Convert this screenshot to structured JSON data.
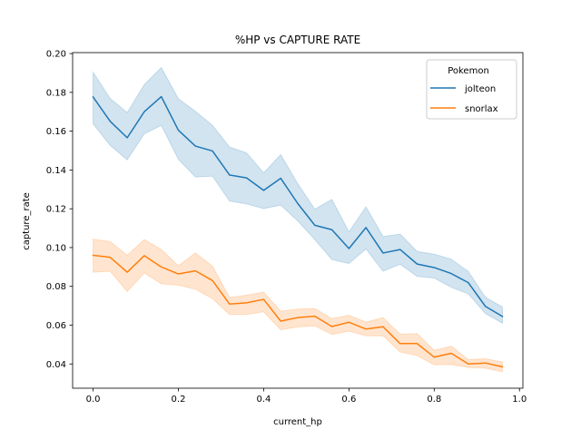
{
  "chart_data": {
    "type": "line",
    "title": "%HP vs CAPTURE RATE",
    "xlabel": "current_hp",
    "ylabel": "capture_rate",
    "xlim": [
      -0.048,
      1.008
    ],
    "ylim": [
      0.0275,
      0.2005
    ],
    "x_ticks": [
      0.0,
      0.2,
      0.4,
      0.6,
      0.8,
      1.0
    ],
    "x_tick_labels": [
      "0.0",
      "0.2",
      "0.4",
      "0.6",
      "0.8",
      "1.0"
    ],
    "y_ticks": [
      0.04,
      0.06,
      0.08,
      0.1,
      0.12,
      0.14,
      0.16,
      0.18,
      0.2
    ],
    "y_tick_labels": [
      "0.04",
      "0.06",
      "0.08",
      "0.10",
      "0.12",
      "0.14",
      "0.16",
      "0.18",
      "0.20"
    ],
    "grid": false,
    "legend": {
      "title": "Pokemon",
      "position": "top-right"
    },
    "x": [
      0.0,
      0.04,
      0.08,
      0.12,
      0.16,
      0.2,
      0.24,
      0.28,
      0.32,
      0.36,
      0.4,
      0.44,
      0.48,
      0.52,
      0.56,
      0.6,
      0.64,
      0.68,
      0.72,
      0.76,
      0.8,
      0.84,
      0.88,
      0.92,
      0.96
    ],
    "series": [
      {
        "name": "jolteon",
        "color": "#1f77b4",
        "values": [
          0.1776,
          0.1651,
          0.1566,
          0.17,
          0.1778,
          0.1605,
          0.1523,
          0.1498,
          0.1374,
          0.1359,
          0.1295,
          0.1357,
          0.1227,
          0.1115,
          0.1092,
          0.0995,
          0.1103,
          0.0972,
          0.099,
          0.0915,
          0.0897,
          0.0866,
          0.0819,
          0.0697,
          0.0645
        ],
        "ci_lower": [
          0.1638,
          0.1527,
          0.1452,
          0.1586,
          0.163,
          0.1455,
          0.1364,
          0.1368,
          0.124,
          0.1225,
          0.1201,
          0.1219,
          0.1137,
          0.1041,
          0.0938,
          0.0918,
          0.0993,
          0.0878,
          0.0914,
          0.0851,
          0.0843,
          0.0795,
          0.0761,
          0.066,
          0.061
        ],
        "ci_upper": [
          0.1904,
          0.1769,
          0.1696,
          0.184,
          0.1928,
          0.1767,
          0.1702,
          0.163,
          0.1518,
          0.1488,
          0.1385,
          0.1479,
          0.1329,
          0.1198,
          0.1248,
          0.1081,
          0.121,
          0.1057,
          0.1069,
          0.098,
          0.0966,
          0.094,
          0.0877,
          0.0744,
          0.0694
        ]
      },
      {
        "name": "snorlax",
        "color": "#ff7f0e",
        "values": [
          0.096,
          0.095,
          0.0873,
          0.0958,
          0.09,
          0.0864,
          0.088,
          0.083,
          0.0709,
          0.0715,
          0.0733,
          0.0621,
          0.0639,
          0.0646,
          0.0593,
          0.0615,
          0.058,
          0.0592,
          0.0505,
          0.0505,
          0.0435,
          0.0455,
          0.04,
          0.0405,
          0.0385
        ],
        "ci_lower": [
          0.0873,
          0.0878,
          0.0773,
          0.0869,
          0.0813,
          0.0806,
          0.0785,
          0.0737,
          0.0655,
          0.0655,
          0.0669,
          0.0576,
          0.0591,
          0.0596,
          0.0552,
          0.0569,
          0.0545,
          0.0545,
          0.0462,
          0.0443,
          0.0396,
          0.0397,
          0.0382,
          0.0378,
          0.036
        ],
        "ci_upper": [
          0.1043,
          0.1031,
          0.096,
          0.1041,
          0.099,
          0.0906,
          0.0972,
          0.0904,
          0.0742,
          0.0755,
          0.077,
          0.0672,
          0.0683,
          0.0686,
          0.0634,
          0.0651,
          0.0616,
          0.0639,
          0.0554,
          0.0556,
          0.047,
          0.0492,
          0.0422,
          0.0427,
          0.041
        ]
      }
    ]
  }
}
